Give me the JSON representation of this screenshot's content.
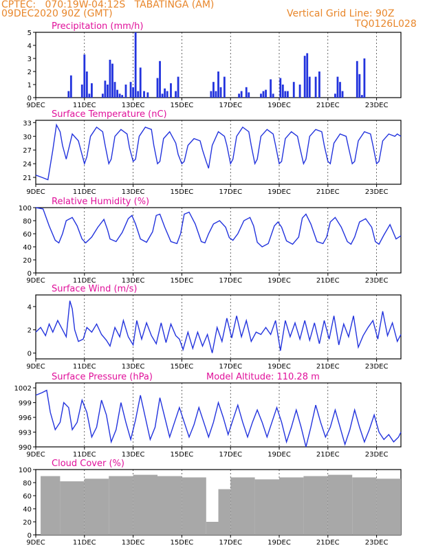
{
  "header": {
    "line1": "CPTEC:   070:19W-04:12S   TABATINGA (AM)",
    "line2": "09DEC2020 90Z (GMT)",
    "vgrid": "Vertical Grid Line: 90Z",
    "code": "TQ0126L028",
    "model_altitude": "Model Altitude: 110.28 m"
  },
  "colors": {
    "header": "#e8862a",
    "title": "#e0109a",
    "line": "#2233dd",
    "cloud": "#a8a8a8",
    "axis": "#000000"
  },
  "x_ticks": [
    "9DEC",
    "11DEC",
    "13DEC",
    "15DEC",
    "17DEC",
    "19DEC",
    "21DEC",
    "23DEC"
  ],
  "chart_data": [
    {
      "id": "precip",
      "type": "bar",
      "title": "Precipitation (mm/h)",
      "x_unit": "days from 9DEC 00Z",
      "ylim": [
        0,
        5
      ],
      "yticks": [
        0,
        1,
        2,
        3,
        4,
        5
      ],
      "x": [
        1.35,
        1.45,
        1.9,
        2.0,
        2.1,
        2.2,
        2.3,
        2.75,
        2.85,
        2.95,
        3.05,
        3.15,
        3.25,
        3.35,
        3.45,
        3.55,
        3.7,
        3.9,
        4.0,
        4.1,
        4.2,
        4.3,
        4.45,
        4.6,
        5.0,
        5.1,
        5.2,
        5.3,
        5.4,
        5.55,
        5.75,
        5.85,
        7.2,
        7.3,
        7.4,
        7.5,
        7.6,
        7.75,
        8.35,
        8.45,
        8.65,
        8.75,
        9.25,
        9.35,
        9.45,
        9.65,
        9.75,
        10.05,
        10.15,
        10.25,
        10.35,
        10.6,
        10.85,
        11.05,
        11.15,
        11.25,
        11.5,
        11.65,
        12.3,
        12.4,
        12.5,
        12.6,
        13.2,
        13.3,
        13.4,
        13.5
      ],
      "values": [
        0.5,
        1.7,
        1.0,
        3.3,
        2.0,
        0.3,
        1.1,
        0.3,
        1.3,
        1.0,
        2.9,
        2.6,
        1.2,
        0.6,
        0.3,
        0.2,
        1.0,
        1.2,
        0.8,
        5.0,
        0.5,
        2.3,
        0.5,
        0.4,
        1.5,
        2.8,
        0.3,
        0.7,
        0.5,
        1.1,
        0.5,
        1.6,
        0.5,
        1.2,
        0.5,
        2.0,
        0.8,
        1.6,
        0.3,
        0.5,
        0.8,
        0.4,
        0.3,
        0.5,
        0.6,
        1.4,
        0.3,
        1.5,
        1.0,
        0.5,
        0.5,
        1.2,
        1.0,
        3.2,
        3.4,
        1.6,
        1.6,
        2.0,
        0.3,
        1.6,
        1.2,
        0.5,
        2.8,
        1.8,
        0.2,
        3.0
      ]
    },
    {
      "id": "temp",
      "type": "line",
      "title": "Surface Temperature (nC)",
      "x_unit": "days from 9DEC 00Z",
      "ylim": [
        19.5,
        33.5
      ],
      "yticks": [
        21,
        24,
        27,
        30,
        33
      ],
      "x": [
        0,
        0.25,
        0.5,
        0.7,
        0.85,
        1.0,
        1.1,
        1.25,
        1.5,
        1.75,
        1.85,
        2.0,
        2.1,
        2.25,
        2.5,
        2.75,
        2.85,
        3.0,
        3.1,
        3.25,
        3.5,
        3.75,
        3.85,
        4.0,
        4.1,
        4.25,
        4.5,
        4.75,
        4.85,
        5.0,
        5.1,
        5.25,
        5.5,
        5.75,
        5.85,
        6.0,
        6.1,
        6.25,
        6.5,
        6.75,
        6.85,
        7.0,
        7.1,
        7.25,
        7.5,
        7.75,
        7.85,
        8.0,
        8.1,
        8.25,
        8.5,
        8.75,
        8.85,
        9.0,
        9.1,
        9.25,
        9.5,
        9.75,
        9.85,
        10.0,
        10.1,
        10.25,
        10.5,
        10.75,
        10.85,
        11.0,
        11.1,
        11.25,
        11.5,
        11.75,
        11.85,
        12.0,
        12.1,
        12.25,
        12.5,
        12.75,
        12.85,
        13.0,
        13.1,
        13.25,
        13.5,
        13.75,
        13.85,
        14.0,
        14.1,
        14.25,
        14.5,
        14.75,
        14.85,
        15.0
      ],
      "values": [
        21.5,
        21.0,
        20.5,
        27.0,
        32.5,
        31.0,
        28.0,
        25.0,
        30.5,
        29.0,
        27.0,
        24.0,
        25.5,
        30.0,
        32.0,
        31.0,
        28.0,
        24.0,
        25.0,
        30.0,
        31.5,
        30.5,
        27.5,
        24.5,
        25.0,
        30.0,
        32.0,
        31.5,
        28.0,
        24.0,
        24.5,
        29.5,
        31.0,
        28.5,
        26.0,
        24.0,
        24.5,
        28.0,
        29.5,
        29.0,
        27.0,
        24.5,
        23.0,
        28.0,
        31.0,
        30.0,
        28.0,
        24.0,
        25.0,
        30.0,
        32.0,
        31.0,
        28.0,
        24.0,
        25.0,
        30.0,
        31.5,
        30.5,
        28.0,
        24.0,
        24.5,
        29.5,
        31.0,
        30.0,
        27.5,
        24.0,
        25.0,
        30.0,
        31.5,
        31.0,
        28.0,
        24.5,
        24.0,
        28.5,
        30.5,
        30.0,
        27.5,
        24.0,
        24.5,
        29.0,
        31.0,
        30.5,
        28.0,
        24.0,
        24.5,
        29.0,
        30.5,
        30.0,
        30.5,
        30.0
      ]
    },
    {
      "id": "rh",
      "type": "line",
      "title": "Relative Humidity (%)",
      "x_unit": "days from 9DEC 00Z",
      "ylim": [
        0,
        100
      ],
      "yticks": [
        0,
        20,
        40,
        60,
        80,
        100
      ],
      "x": [
        0,
        0.3,
        0.55,
        0.8,
        0.95,
        1.1,
        1.25,
        1.5,
        1.7,
        1.9,
        2.05,
        2.3,
        2.55,
        2.8,
        2.95,
        3.05,
        3.3,
        3.55,
        3.8,
        3.95,
        4.1,
        4.3,
        4.55,
        4.8,
        4.95,
        5.1,
        5.3,
        5.55,
        5.8,
        5.95,
        6.1,
        6.3,
        6.55,
        6.8,
        6.95,
        7.1,
        7.3,
        7.55,
        7.8,
        7.95,
        8.1,
        8.3,
        8.55,
        8.8,
        8.95,
        9.1,
        9.3,
        9.55,
        9.8,
        9.95,
        10.1,
        10.3,
        10.55,
        10.8,
        10.95,
        11.1,
        11.3,
        11.55,
        11.8,
        11.95,
        12.1,
        12.3,
        12.55,
        12.8,
        12.95,
        13.1,
        13.3,
        13.55,
        13.8,
        13.95,
        14.1,
        14.3,
        14.55,
        14.8,
        15.0
      ],
      "values": [
        100,
        98,
        72,
        50,
        46,
        60,
        80,
        85,
        72,
        52,
        46,
        55,
        70,
        82,
        66,
        52,
        48,
        62,
        83,
        88,
        75,
        52,
        47,
        63,
        88,
        90,
        70,
        48,
        45,
        60,
        90,
        93,
        75,
        48,
        46,
        60,
        75,
        80,
        70,
        54,
        50,
        60,
        80,
        85,
        72,
        47,
        40,
        45,
        72,
        78,
        70,
        49,
        44,
        55,
        84,
        90,
        75,
        48,
        45,
        55,
        78,
        85,
        70,
        48,
        44,
        55,
        78,
        83,
        70,
        48,
        44,
        58,
        74,
        52,
        57
      ]
    },
    {
      "id": "wind",
      "type": "line",
      "title": "Surface Wind (m/s)",
      "x_unit": "days from 9DEC 00Z",
      "ylim": [
        -0.5,
        5.0
      ],
      "yticks": [
        0,
        2,
        4
      ],
      "x": [
        0,
        0.2,
        0.4,
        0.55,
        0.7,
        0.9,
        1.05,
        1.25,
        1.4,
        1.5,
        1.6,
        1.75,
        1.95,
        2.1,
        2.3,
        2.5,
        2.7,
        2.9,
        3.05,
        3.25,
        3.45,
        3.6,
        3.8,
        4.0,
        4.15,
        4.35,
        4.55,
        4.75,
        4.95,
        5.15,
        5.35,
        5.55,
        5.75,
        5.9,
        6.05,
        6.25,
        6.45,
        6.65,
        6.85,
        7.05,
        7.25,
        7.45,
        7.65,
        7.85,
        8.05,
        8.25,
        8.45,
        8.65,
        8.85,
        9.05,
        9.25,
        9.45,
        9.65,
        9.85,
        10.05,
        10.25,
        10.45,
        10.65,
        10.85,
        11.05,
        11.25,
        11.45,
        11.65,
        11.85,
        12.05,
        12.25,
        12.45,
        12.65,
        12.85,
        13.05,
        13.25,
        13.45,
        13.65,
        13.85,
        14.05,
        14.25,
        14.45,
        14.65,
        14.85,
        15.0
      ],
      "values": [
        1.8,
        2.2,
        1.5,
        2.5,
        1.8,
        2.8,
        2.2,
        1.4,
        4.5,
        3.8,
        2.0,
        1.0,
        1.2,
        2.2,
        1.8,
        2.5,
        1.6,
        1.1,
        0.6,
        2.2,
        1.4,
        2.8,
        1.4,
        0.7,
        2.8,
        1.2,
        2.6,
        1.5,
        0.8,
        2.6,
        0.9,
        2.5,
        1.5,
        1.2,
        0.3,
        1.8,
        0.4,
        1.8,
        0.6,
        1.6,
        0.0,
        2.2,
        1.0,
        3.0,
        1.3,
        3.2,
        1.4,
        2.8,
        1.0,
        1.8,
        1.6,
        2.2,
        1.6,
        2.8,
        0.2,
        2.8,
        1.4,
        2.6,
        1.2,
        2.8,
        1.1,
        2.6,
        0.8,
        2.8,
        1.2,
        3.2,
        0.7,
        2.5,
        1.4,
        3.2,
        0.5,
        1.5,
        2.2,
        2.8,
        1.2,
        3.6,
        1.5,
        2.6,
        1.0,
        1.6
      ]
    },
    {
      "id": "pres",
      "type": "line",
      "title": "Surface Pressure (hPa)",
      "x_unit": "days from 9DEC 00Z",
      "ylim": [
        990,
        1003
      ],
      "yticks": [
        990,
        993,
        996,
        999,
        1002
      ],
      "x": [
        0,
        0.25,
        0.45,
        0.6,
        0.8,
        1.0,
        1.15,
        1.35,
        1.5,
        1.7,
        1.9,
        2.1,
        2.3,
        2.5,
        2.7,
        2.9,
        3.1,
        3.3,
        3.5,
        3.7,
        3.9,
        4.1,
        4.3,
        4.5,
        4.7,
        4.9,
        5.1,
        5.3,
        5.5,
        5.7,
        5.9,
        6.1,
        6.3,
        6.5,
        6.7,
        6.9,
        7.1,
        7.3,
        7.5,
        7.7,
        7.9,
        8.1,
        8.3,
        8.5,
        8.7,
        8.9,
        9.1,
        9.3,
        9.5,
        9.7,
        9.9,
        10.1,
        10.3,
        10.5,
        10.7,
        10.9,
        11.1,
        11.3,
        11.5,
        11.7,
        11.9,
        12.1,
        12.3,
        12.5,
        12.7,
        12.9,
        13.1,
        13.3,
        13.5,
        13.7,
        13.9,
        14.1,
        14.3,
        14.5,
        14.7,
        14.9,
        15.0
      ],
      "values": [
        1000.5,
        1001.0,
        1001.5,
        997.0,
        993.5,
        995.0,
        999.0,
        998.0,
        993.5,
        995.0,
        999.5,
        997.0,
        992.0,
        994.0,
        999.5,
        996.5,
        991.0,
        993.5,
        999.0,
        995.0,
        991.5,
        995.5,
        1000.5,
        996.0,
        991.5,
        994.0,
        1000.0,
        996.0,
        992.0,
        995.0,
        998.0,
        995.0,
        992.0,
        994.5,
        998.0,
        995.0,
        992.0,
        995.0,
        999.0,
        996.0,
        992.5,
        995.5,
        998.5,
        995.0,
        992.0,
        995.0,
        997.5,
        995.0,
        992.0,
        995.0,
        998.0,
        995.0,
        991.0,
        994.0,
        997.5,
        994.0,
        990.0,
        994.0,
        998.5,
        995.0,
        992.0,
        994.0,
        997.5,
        994.0,
        990.5,
        993.5,
        997.5,
        994.0,
        991.0,
        993.5,
        996.5,
        993.0,
        991.5,
        992.5,
        991.0,
        992.0,
        993.0
      ]
    },
    {
      "id": "cloud",
      "type": "bar",
      "title": "Cloud Cover (%)",
      "x_unit": "days from 9DEC 00Z",
      "ylim": [
        0,
        100
      ],
      "yticks": [
        0,
        20,
        40,
        60,
        80,
        100
      ],
      "x": [
        0.2,
        1.0,
        2.0,
        3.0,
        4.0,
        5.0,
        6.0,
        7.0,
        7.5,
        8.0,
        9.0,
        10.0,
        11.0,
        12.0,
        13.0,
        14.0,
        15.0
      ],
      "values": [
        90,
        82,
        86,
        90,
        92,
        90,
        88,
        20,
        70,
        88,
        85,
        88,
        90,
        92,
        88,
        86,
        90
      ]
    }
  ]
}
